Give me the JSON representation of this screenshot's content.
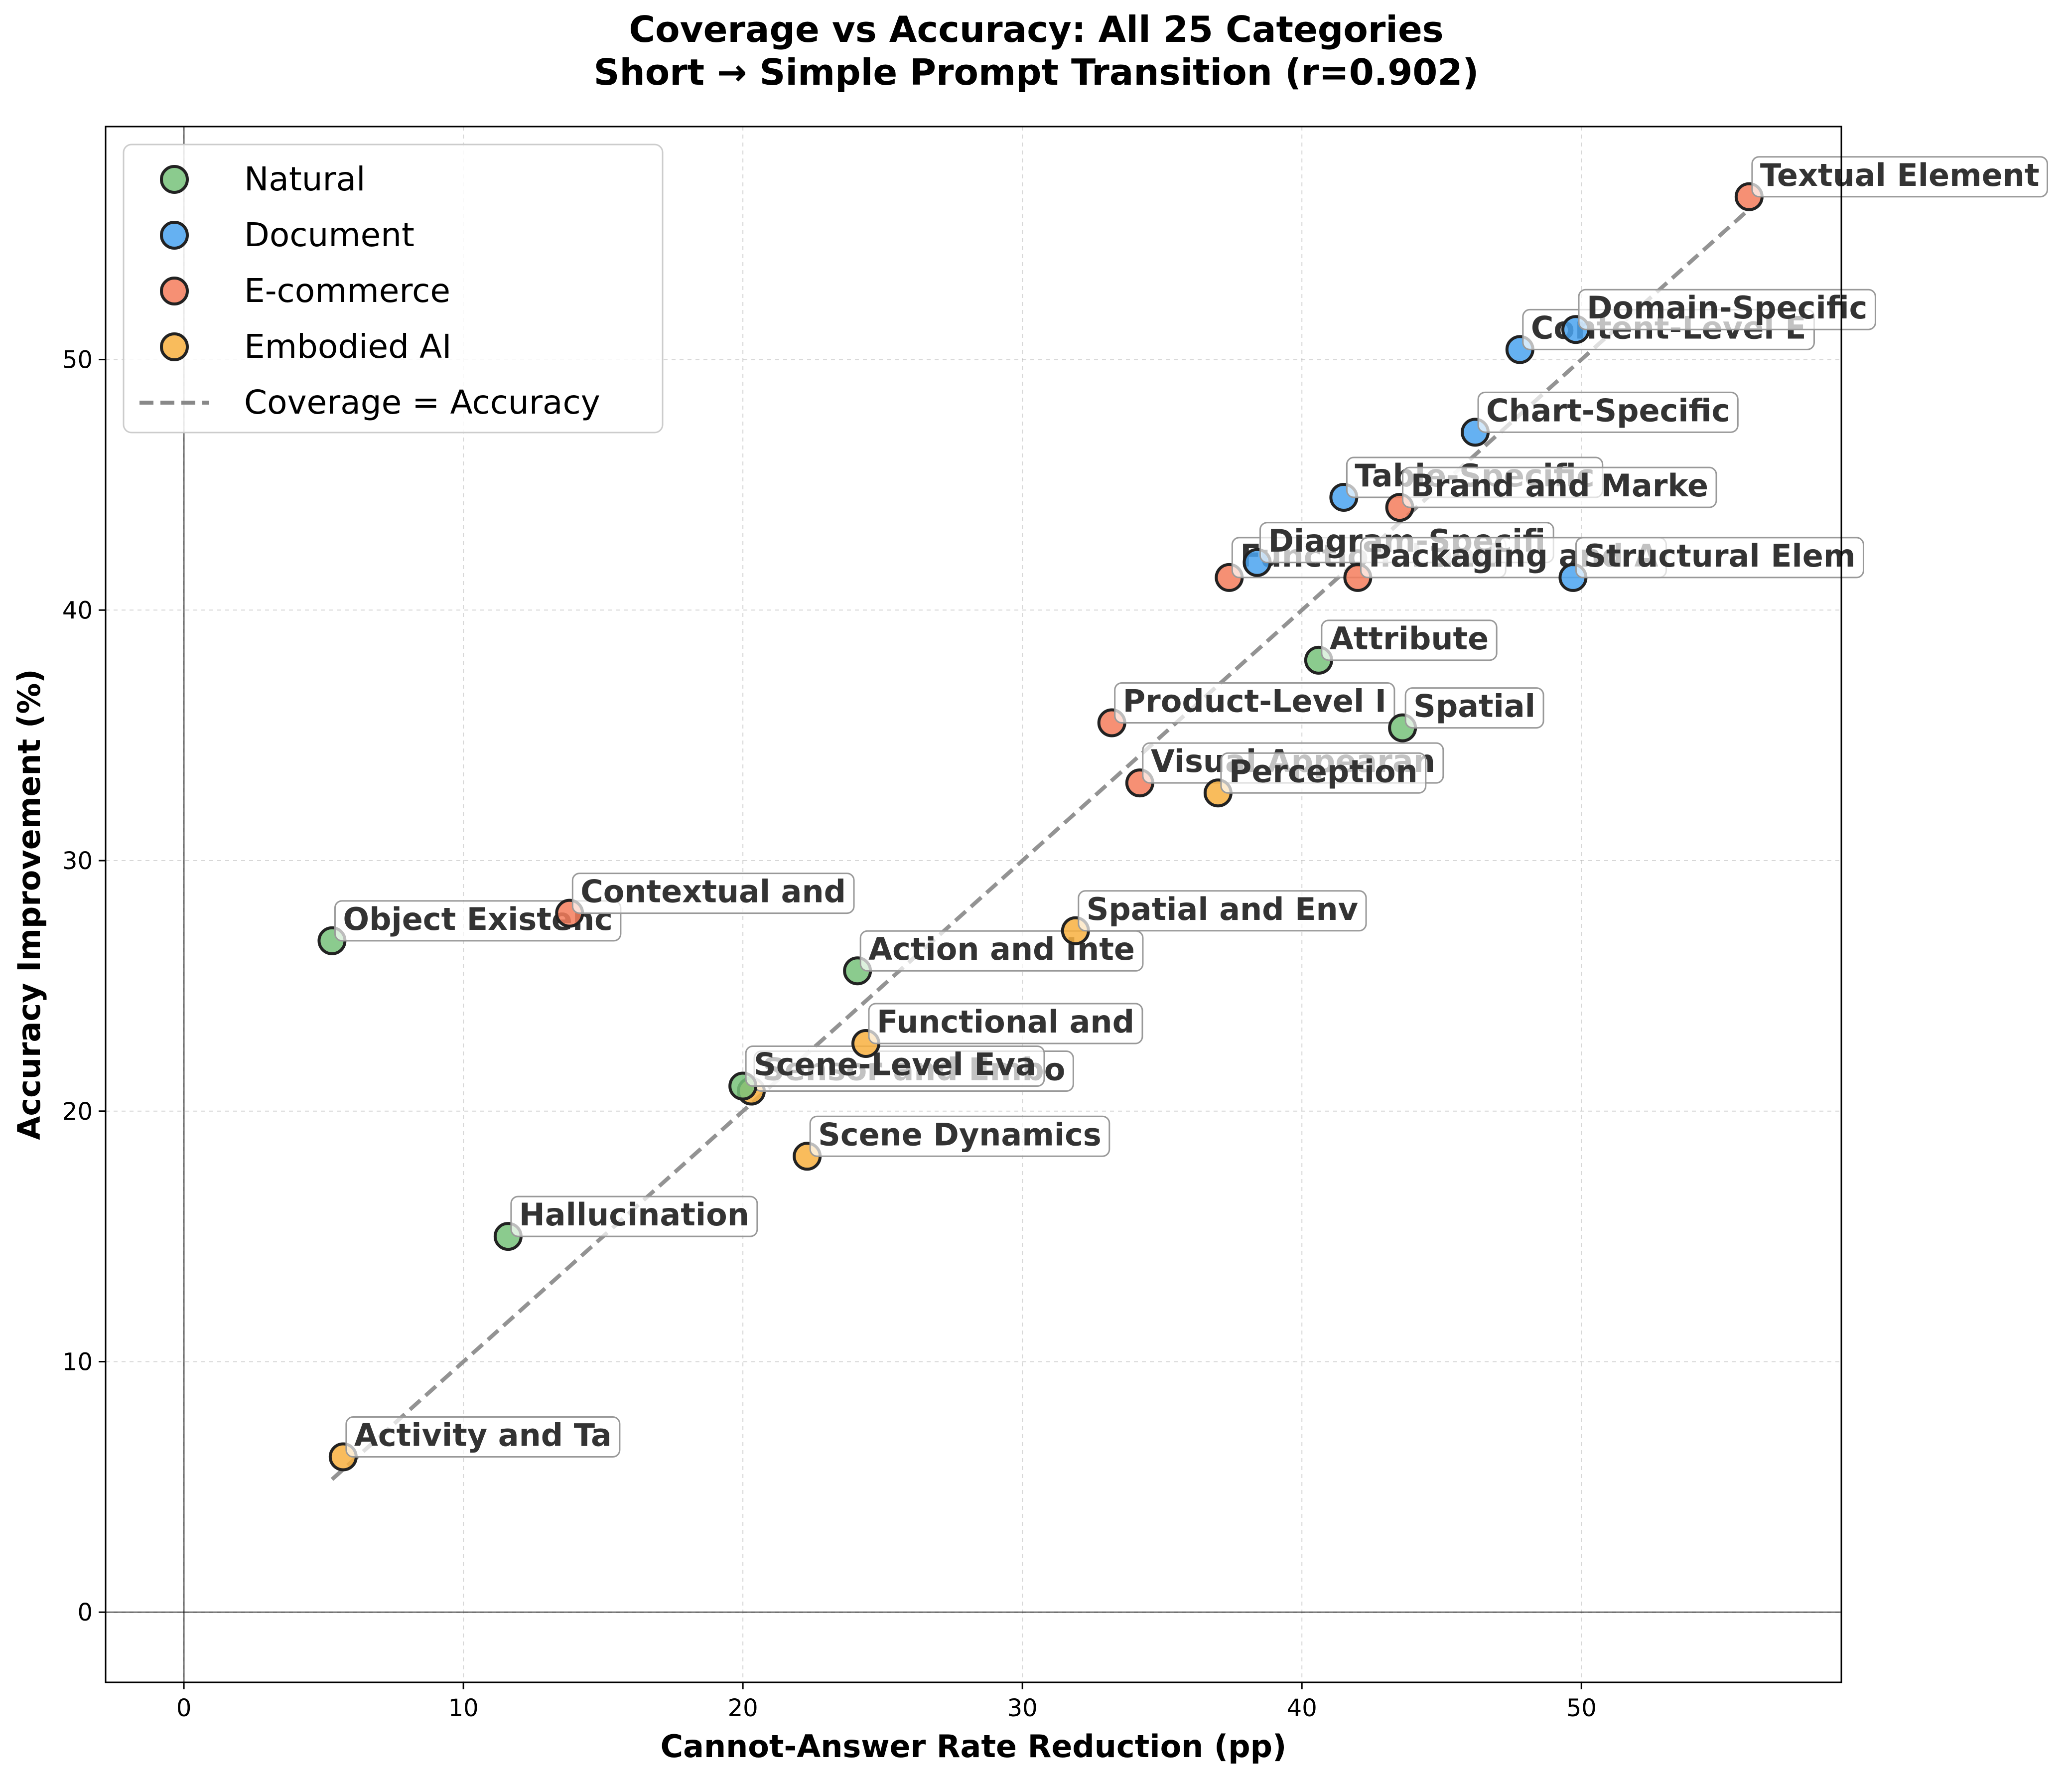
{
  "chart_data": {
    "type": "scatter",
    "title_line1": "Coverage vs Accuracy: All 25 Categories",
    "title_line2": "Short → Simple Prompt Transition (r=0.902)",
    "xlabel": "Cannot-Answer Rate Reduction (pp)",
    "ylabel": "Accuracy Improvement (%)",
    "xlim": [
      -2.8,
      59.3
    ],
    "ylim": [
      -2.8,
      59.3
    ],
    "xticks": [
      "0",
      "10",
      "20",
      "30",
      "40",
      "50"
    ],
    "yticks": [
      "0",
      "10",
      "20",
      "30",
      "40",
      "50"
    ],
    "grid": true,
    "legend_position": "upper-left",
    "reference_line": {
      "name": "Coverage = Accuracy",
      "color": "#888888",
      "style": "dashed",
      "from": [
        5.3,
        5.3
      ],
      "to": [
        55.9,
        55.9
      ]
    },
    "series": [
      {
        "name": "Natural",
        "color": "#77c27a",
        "points": [
          {
            "x": 5.3,
            "y": 26.8,
            "label": "Object Existenc"
          },
          {
            "x": 11.6,
            "y": 15.0,
            "label": "Hallucination"
          },
          {
            "x": 20.0,
            "y": 21.0,
            "label": "Scene-Level Eva"
          },
          {
            "x": 24.1,
            "y": 25.6,
            "label": "Action and Inte"
          },
          {
            "x": 40.6,
            "y": 38.0,
            "label": "Attribute"
          },
          {
            "x": 43.6,
            "y": 35.3,
            "label": "Spatial"
          }
        ]
      },
      {
        "name": "Document",
        "color": "#4aa3f0",
        "points": [
          {
            "x": 38.4,
            "y": 41.9,
            "label": "Diagram-Specifi"
          },
          {
            "x": 41.5,
            "y": 44.5,
            "label": "Table-Specific"
          },
          {
            "x": 46.2,
            "y": 47.1,
            "label": "Chart-Specific"
          },
          {
            "x": 47.8,
            "y": 50.4,
            "label": "Content-Level E"
          },
          {
            "x": 49.8,
            "y": 51.2,
            "label": "Domain-Specific"
          },
          {
            "x": 49.7,
            "y": 41.3,
            "label": "Structural Elem"
          }
        ]
      },
      {
        "name": "E-commerce",
        "color": "#f47c5c",
        "points": [
          {
            "x": 13.8,
            "y": 27.9,
            "label": "Contextual and"
          },
          {
            "x": 33.2,
            "y": 35.5,
            "label": "Product-Level I"
          },
          {
            "x": 34.2,
            "y": 33.1,
            "label": "Visual Appearan"
          },
          {
            "x": 37.4,
            "y": 41.3,
            "label": "Functional and"
          },
          {
            "x": 42.0,
            "y": 41.3,
            "label": "Packaging and A"
          },
          {
            "x": 43.5,
            "y": 44.1,
            "label": "Brand and Marke"
          },
          {
            "x": 56.0,
            "y": 56.5,
            "label": "Textual Element"
          }
        ]
      },
      {
        "name": "Embodied AI",
        "color": "#f8b040",
        "points": [
          {
            "x": 5.7,
            "y": 6.2,
            "label": "Activity and Ta"
          },
          {
            "x": 20.3,
            "y": 20.8,
            "label": "Sensor and Embo"
          },
          {
            "x": 22.3,
            "y": 18.2,
            "label": "Scene Dynamics"
          },
          {
            "x": 24.4,
            "y": 22.7,
            "label": "Functional and"
          },
          {
            "x": 31.9,
            "y": 27.2,
            "label": "Spatial and Env"
          },
          {
            "x": 37.0,
            "y": 32.7,
            "label": "Perception"
          }
        ]
      }
    ],
    "draw_order": [
      [
        3,
        0
      ],
      [
        0,
        1
      ],
      [
        0,
        0
      ],
      [
        2,
        0
      ],
      [
        3,
        1
      ],
      [
        0,
        2
      ],
      [
        3,
        2
      ],
      [
        0,
        3
      ],
      [
        3,
        3
      ],
      [
        3,
        4
      ],
      [
        2,
        1
      ],
      [
        2,
        2
      ],
      [
        3,
        5
      ],
      [
        2,
        3
      ],
      [
        1,
        0
      ],
      [
        0,
        4
      ],
      [
        1,
        1
      ],
      [
        2,
        4
      ],
      [
        2,
        5
      ],
      [
        0,
        5
      ],
      [
        1,
        2
      ],
      [
        1,
        3
      ],
      [
        1,
        5
      ],
      [
        1,
        4
      ],
      [
        2,
        6
      ]
    ]
  }
}
